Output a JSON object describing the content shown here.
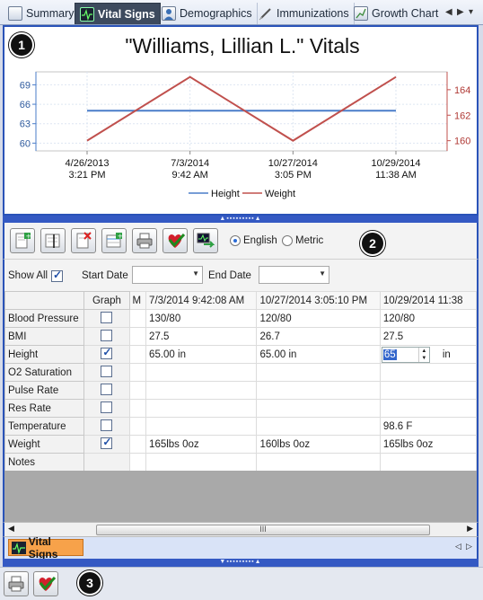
{
  "tabs": [
    {
      "label": "Summary",
      "icon": "summary-icon"
    },
    {
      "label": "Vital Signs",
      "icon": "monitor-icon",
      "active": true
    },
    {
      "label": "Demographics",
      "icon": "person-icon"
    },
    {
      "label": "Immunizations",
      "icon": "syringe-icon"
    },
    {
      "label": "Growth Chart",
      "icon": "chart-icon"
    }
  ],
  "badges": [
    "1",
    "2",
    "3"
  ],
  "chart_data": {
    "type": "line",
    "title": "\"Williams, Lillian L.\" Vitals",
    "x_labels": [
      [
        "4/26/2013",
        "3:21 PM"
      ],
      [
        "7/3/2014",
        "9:42 AM"
      ],
      [
        "10/27/2014",
        "3:05 PM"
      ],
      [
        "10/29/2014",
        "11:38 AM"
      ]
    ],
    "y_left": {
      "ticks": [
        60,
        63,
        66,
        69
      ],
      "range": [
        58.8,
        71
      ]
    },
    "y_right": {
      "ticks": [
        160,
        162,
        164
      ],
      "range": [
        159.2,
        165.4
      ]
    },
    "series": [
      {
        "name": "Height",
        "axis": "left",
        "color": "#4a7dc9",
        "values": [
          65,
          65,
          65,
          65
        ]
      },
      {
        "name": "Weight",
        "axis": "right",
        "color": "#c0504d",
        "values": [
          160,
          165,
          160,
          165
        ]
      }
    ],
    "legend_position": "bottom",
    "grid": true
  },
  "toolbar": {
    "buttons": [
      "add-vitals-icon",
      "edit-vitals-icon",
      "delete-vitals-icon",
      "add-row-icon",
      "print-icon",
      "approve-icon",
      "monitor-import-icon"
    ],
    "english_label": "English",
    "metric_label": "Metric",
    "unit_selected": "English"
  },
  "filters": {
    "show_all_label": "Show All",
    "show_all_checked": true,
    "start_date_label": "Start Date",
    "end_date_label": "End Date"
  },
  "grid": {
    "graph_header": "Graph",
    "partial_header": "M",
    "columns": [
      "7/3/2014 9:42:08 AM",
      "10/27/2014 3:05:10 PM",
      "10/29/2014 11:38"
    ],
    "rows": [
      {
        "label": "Blood Pressure",
        "graph": false,
        "values": [
          "130/80",
          "120/80",
          "120/80"
        ]
      },
      {
        "label": "BMI",
        "graph": false,
        "values": [
          "27.5",
          "26.7",
          "27.5"
        ]
      },
      {
        "label": "Height",
        "graph": true,
        "values": [
          "65.00 in",
          "65.00 in",
          ""
        ]
      },
      {
        "label": "O2 Saturation",
        "graph": false,
        "values": [
          "",
          "",
          ""
        ]
      },
      {
        "label": "Pulse Rate",
        "graph": false,
        "values": [
          "",
          "",
          ""
        ]
      },
      {
        "label": "Res Rate",
        "graph": false,
        "values": [
          "",
          "",
          ""
        ]
      },
      {
        "label": "Temperature",
        "graph": false,
        "values": [
          "",
          "",
          "98.6 F"
        ]
      },
      {
        "label": "Weight",
        "graph": true,
        "values": [
          "165lbs 0oz",
          "160lbs 0oz",
          "165lbs 0oz"
        ]
      },
      {
        "label": "Notes",
        "graph": null,
        "values": [
          "",
          "",
          ""
        ]
      }
    ],
    "editor_value": "65",
    "editor_unit": "in"
  },
  "scrollbar": {
    "thumb_label": "III"
  },
  "bottom_tab": {
    "label": "Vital Signs"
  }
}
